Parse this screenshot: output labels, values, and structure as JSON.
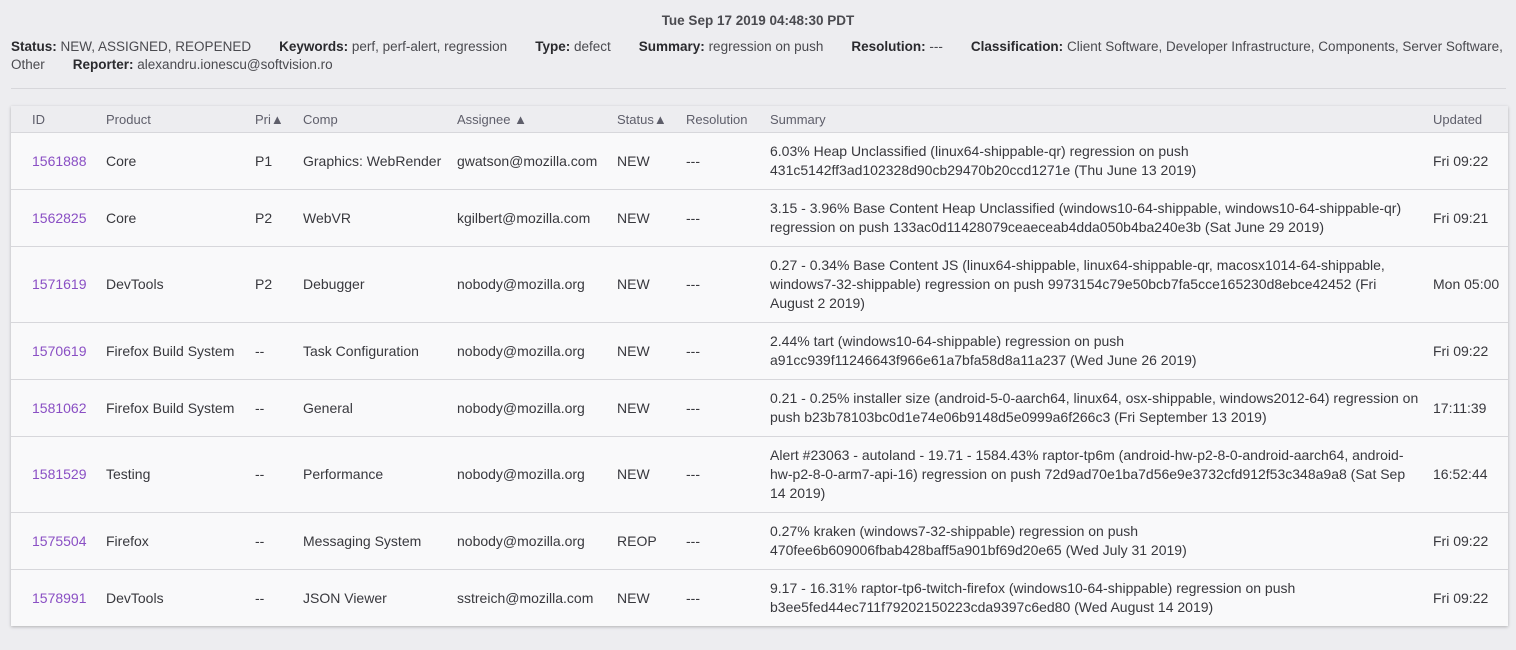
{
  "header": {
    "datetime": "Tue Sep 17 2019 04:48:30 PDT",
    "filters": [
      {
        "label": "Status:",
        "value": "NEW, ASSIGNED, REOPENED"
      },
      {
        "label": "Keywords:",
        "value": "perf, perf-alert, regression"
      },
      {
        "label": "Type:",
        "value": "defect"
      },
      {
        "label": "Summary:",
        "value": "regression on push"
      },
      {
        "label": "Resolution:",
        "value": "---"
      },
      {
        "label": "Classification:",
        "value": "Client Software, Developer Infrastructure, Components, Server Software, Other"
      },
      {
        "label": "Reporter:",
        "value": "alexandru.ionescu@softvision.ro"
      }
    ]
  },
  "table": {
    "columns": [
      "ID",
      "Product",
      "Pri▲",
      "Comp",
      "Assignee ▲",
      "Status▲",
      "Resolution",
      "Summary",
      "Updated"
    ],
    "rows": [
      {
        "id": "1561888",
        "product": "Core",
        "pri": "P1",
        "comp": "Graphics: WebRender",
        "assignee": "gwatson@mozilla.com",
        "status": "NEW",
        "resolution": "---",
        "summary": "6.03% Heap Unclassified (linux64-shippable-qr) regression on push 431c5142ff3ad102328d90cb29470b20ccd1271e (Thu June 13 2019)",
        "updated": "Fri 09:22"
      },
      {
        "id": "1562825",
        "product": "Core",
        "pri": "P2",
        "comp": "WebVR",
        "assignee": "kgilbert@mozilla.com",
        "status": "NEW",
        "resolution": "---",
        "summary": "3.15 - 3.96% Base Content Heap Unclassified (windows10-64-shippable, windows10-64-shippable-qr) regression on push 133ac0d11428079ceaeceab4dda050b4ba240e3b (Sat June 29 2019)",
        "updated": "Fri 09:21"
      },
      {
        "id": "1571619",
        "product": "DevTools",
        "pri": "P2",
        "comp": "Debugger",
        "assignee": "nobody@mozilla.org",
        "status": "NEW",
        "resolution": "---",
        "summary": "0.27 - 0.34% Base Content JS (linux64-shippable, linux64-shippable-qr, macosx1014-64-shippable, windows7-32-shippable) regression on push 9973154c79e50bcb7fa5cce165230d8ebce42452 (Fri August 2 2019)",
        "updated": "Mon 05:00"
      },
      {
        "id": "1570619",
        "product": "Firefox Build System",
        "pri": "--",
        "comp": "Task Configuration",
        "assignee": "nobody@mozilla.org",
        "status": "NEW",
        "resolution": "---",
        "summary": "2.44% tart (windows10-64-shippable) regression on push a91cc939f11246643f966e61a7bfa58d8a11a237 (Wed June 26 2019)",
        "updated": "Fri 09:22"
      },
      {
        "id": "1581062",
        "product": "Firefox Build System",
        "pri": "--",
        "comp": "General",
        "assignee": "nobody@mozilla.org",
        "status": "NEW",
        "resolution": "---",
        "summary": "0.21 - 0.25% installer size (android-5-0-aarch64, linux64, osx-shippable, windows2012-64) regression on push b23b78103bc0d1e74e06b9148d5e0999a6f266c3 (Fri September 13 2019)",
        "updated": "17:11:39"
      },
      {
        "id": "1581529",
        "product": "Testing",
        "pri": "--",
        "comp": "Performance",
        "assignee": "nobody@mozilla.org",
        "status": "NEW",
        "resolution": "---",
        "summary": "Alert #23063 - autoland - 19.71 - 1584.43% raptor-tp6m (android-hw-p2-8-0-android-aarch64, android-hw-p2-8-0-arm7-api-16) regression on push 72d9ad70e1ba7d56e9e3732cfd912f53c348a9a8 (Sat Sep 14 2019)",
        "updated": "16:52:44"
      },
      {
        "id": "1575504",
        "product": "Firefox",
        "pri": "--",
        "comp": "Messaging System",
        "assignee": "nobody@mozilla.org",
        "status": "REOP",
        "resolution": "---",
        "summary": "0.27% kraken (windows7-32-shippable) regression on push 470fee6b609006fbab428baff5a901bf69d20e65 (Wed July 31 2019)",
        "updated": "Fri 09:22"
      },
      {
        "id": "1578991",
        "product": "DevTools",
        "pri": "--",
        "comp": "JSON Viewer",
        "assignee": "sstreich@mozilla.com",
        "status": "NEW",
        "resolution": "---",
        "summary": "9.17 - 16.31% raptor-tp6-twitch-firefox (windows10-64-shippable) regression on push b3ee5fed44ec711f79202150223cda9397c6ed80 (Wed August 14 2019)",
        "updated": "Fri 09:22"
      }
    ]
  },
  "colors": {
    "background": "#ededf0",
    "table": "#f9f9fa",
    "link": "#8a4fc4"
  }
}
